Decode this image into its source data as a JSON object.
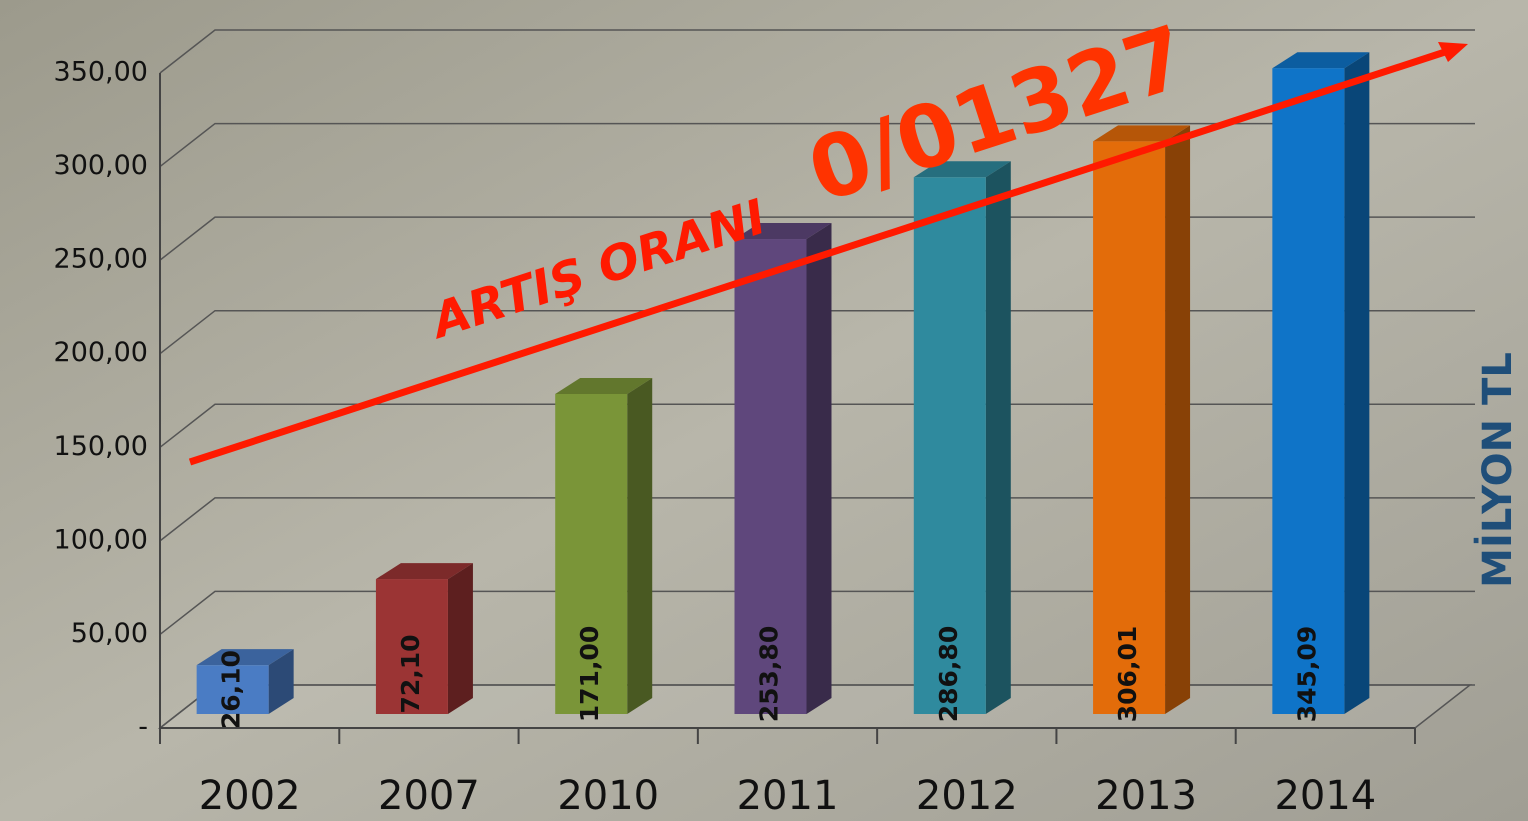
{
  "chart_data": {
    "type": "bar3d",
    "categories": [
      "2002",
      "2007",
      "2010",
      "2011",
      "2012",
      "2013",
      "2014"
    ],
    "values": [
      26.1,
      72.1,
      171.0,
      253.8,
      286.8,
      306.01,
      345.09
    ],
    "value_labels": [
      "26,10",
      "72,10",
      "171,00",
      "253,80",
      "286,80",
      "306,01",
      "345,09"
    ],
    "colors": [
      "#4a7cc4",
      "#9b3434",
      "#7a9538",
      "#5f477c",
      "#2f8a9e",
      "#e36c0a",
      "#0f74c8"
    ],
    "ylim": [
      0,
      350
    ],
    "yticks": [
      {
        "value": 0,
        "label": "-"
      },
      {
        "value": 50,
        "label": "50,00"
      },
      {
        "value": 100,
        "label": "100,00"
      },
      {
        "value": 150,
        "label": "150,00"
      },
      {
        "value": 200,
        "label": "200,00"
      },
      {
        "value": 250,
        "label": "250,00"
      },
      {
        "value": 300,
        "label": "300,00"
      },
      {
        "value": 350,
        "label": "350,00"
      }
    ],
    "grid": true,
    "y_axis_label": "MİLYON TL",
    "annotations": [
      "ARTIŞ ORANI",
      "0/01327"
    ]
  }
}
